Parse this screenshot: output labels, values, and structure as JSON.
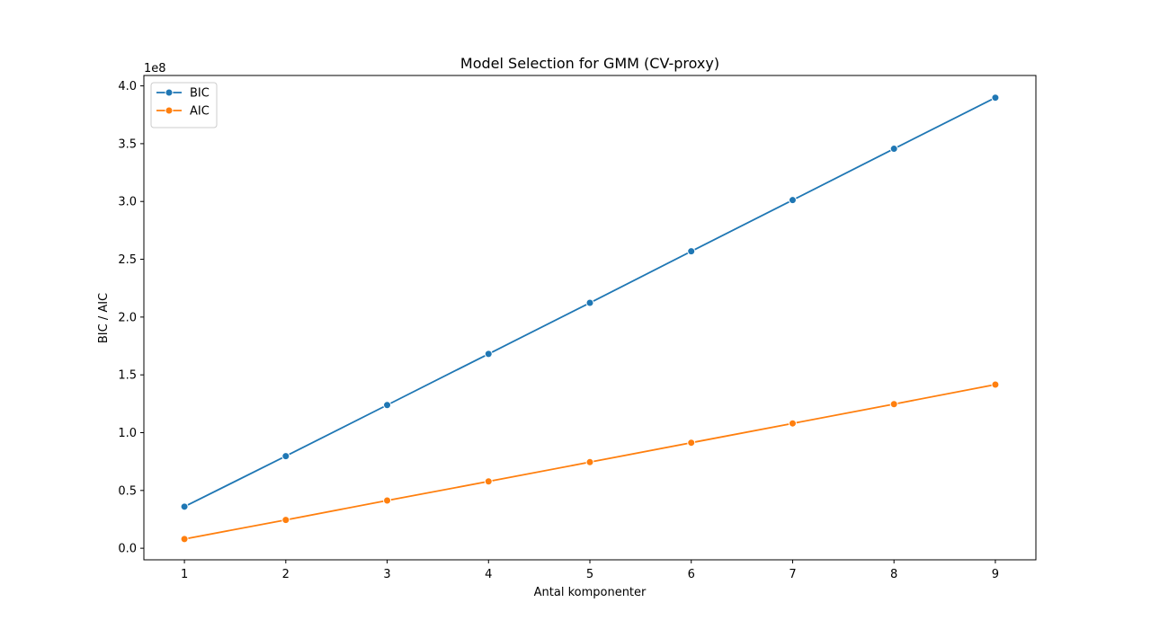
{
  "chart_data": {
    "type": "line",
    "title": "Model Selection for GMM (CV-proxy)",
    "xlabel": "Antal komponenter",
    "ylabel": "BIC / AIC",
    "y_offset_label": "1e8",
    "x": [
      1,
      2,
      3,
      4,
      5,
      6,
      7,
      8,
      9
    ],
    "x_ticks": [
      "1",
      "2",
      "3",
      "4",
      "5",
      "6",
      "7",
      "8",
      "9"
    ],
    "y_ticks": [
      0.0,
      0.5,
      1.0,
      1.5,
      2.0,
      2.5,
      3.0,
      3.5,
      4.0
    ],
    "y_tick_labels": [
      "0.0",
      "0.5",
      "1.0",
      "1.5",
      "2.0",
      "2.5",
      "3.0",
      "3.5",
      "4.0"
    ],
    "xlim": [
      0.6,
      9.4
    ],
    "ylim": [
      -0.1,
      4.09
    ],
    "y_scale": 100000000,
    "grid": false,
    "legend_position": "upper-left",
    "series": [
      {
        "name": "BIC",
        "color": "#1f77b4",
        "values": [
          0.36,
          0.797,
          1.239,
          1.681,
          2.123,
          2.569,
          3.012,
          3.456,
          3.898
        ]
      },
      {
        "name": "AIC",
        "color": "#ff7f0e",
        "values": [
          0.08,
          0.245,
          0.413,
          0.578,
          0.745,
          0.913,
          1.08,
          1.247,
          1.416
        ]
      }
    ]
  }
}
